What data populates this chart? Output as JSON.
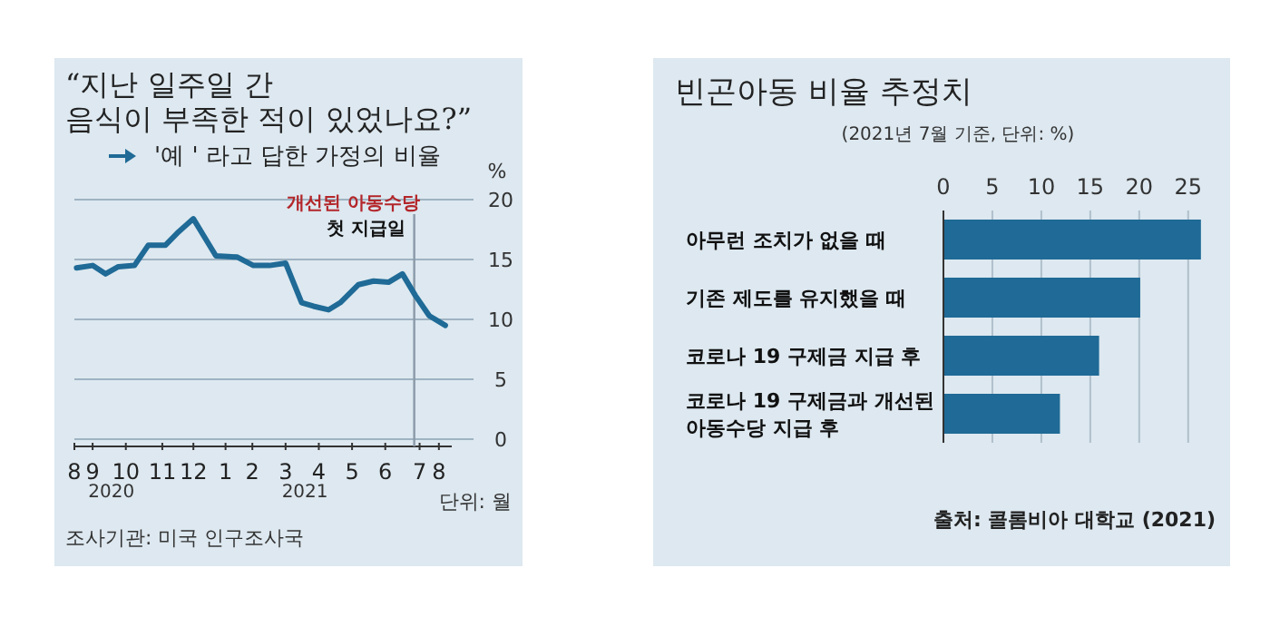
{
  "chart_data": [
    {
      "type": "line",
      "title": "“지난 일주일 간 음식이 부족한 적이 있었나요?”",
      "ylabel": "%",
      "xlabel": "단위: 월",
      "legend": "top left",
      "grid": "y",
      "marker": "none",
      "line_style": "solid",
      "x": [
        "2020-08-16",
        "2020-08-31",
        "2020-09-12",
        "2020-09-24",
        "2020-10-09",
        "2020-10-22",
        "2020-11-07",
        "2020-11-19",
        "2020-12-03",
        "2020-12-24",
        "2021-01-13",
        "2021-01-28",
        "2021-02-12",
        "2021-02-27",
        "2021-03-14",
        "2021-03-25",
        "2021-04-08",
        "2021-04-19",
        "2021-05-06",
        "2021-05-20",
        "2021-06-03",
        "2021-06-16",
        "2021-06-28",
        "2021-07-11",
        "2021-07-26"
      ],
      "series": [
        {
          "name": "'예 ' 라고 답한 가정의 비율",
          "color": "#1f6a96",
          "values": [
            14.3,
            14.5,
            13.8,
            14.4,
            14.5,
            16.2,
            16.2,
            17.3,
            18.4,
            15.3,
            15.2,
            14.5,
            14.5,
            14.7,
            11.4,
            11.1,
            10.8,
            11.4,
            12.9,
            13.2,
            13.1,
            13.8,
            12.0,
            10.3,
            9.5
          ]
        }
      ],
      "xlim": [
        "2020-08-14",
        "2021-08-01"
      ],
      "xticks": [
        {
          "value": "2020-08-14",
          "label": "8"
        },
        {
          "value": "2020-08-31",
          "label": "9"
        },
        {
          "value": "2020-10-01",
          "label": "10"
        },
        {
          "value": "2020-11-04",
          "label": "11"
        },
        {
          "value": "2020-12-03",
          "label": "12"
        },
        {
          "value": "2021-01-02",
          "label": "1"
        },
        {
          "value": "2021-01-27",
          "label": "2"
        },
        {
          "value": "2021-02-27",
          "label": "3"
        },
        {
          "value": "2021-03-30",
          "label": "4"
        },
        {
          "value": "2021-04-30",
          "label": "5"
        },
        {
          "value": "2021-05-31",
          "label": "6"
        },
        {
          "value": "2021-07-02",
          "label": "7"
        },
        {
          "value": "2021-07-20",
          "label": "8"
        }
      ],
      "ylim": [
        0,
        20
      ],
      "yticks": [
        0,
        5,
        10,
        15,
        20
      ],
      "ref_lines": [
        {
          "axis": "x",
          "value": "2021-06-27",
          "label": "개선된 아동수당 첫 지급일",
          "color": "#8a9aa8"
        }
      ],
      "annotations": [
        "2020",
        "2021",
        "조사기관: 미국 인구조사국"
      ]
    },
    {
      "type": "bar",
      "orientation": "horizontal",
      "title": "빈곤아동 비율 추정치",
      "subtitle": "(2021년 7월 기준, 단위: %)",
      "grid": "x",
      "categories": [
        "아무런 조치가 없을 때",
        "기존 제도를 유지했을 때",
        "코로나 19 구제금 지급 후",
        "코로나 19 구제금과 개선된 아동수당 지급 후"
      ],
      "values": [
        26.3,
        20.1,
        15.9,
        11.9
      ],
      "color": "#1f6a96",
      "xlim": [
        0,
        26.5
      ],
      "xticks": [
        0,
        5,
        10,
        15,
        20,
        25
      ],
      "annotations": [
        "출처: 콜롬비아 대학교 (2021)"
      ]
    }
  ]
}
